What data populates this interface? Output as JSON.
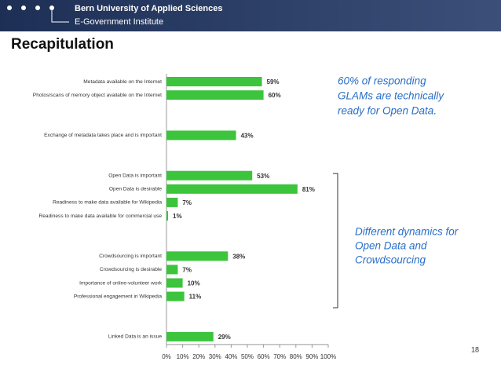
{
  "header": {
    "org": "Bern University of Applied Sciences",
    "institute": "E-Government Institute"
  },
  "page_number": "18",
  "chart_data": {
    "type": "barh",
    "title": "Recapitulation",
    "categories": [
      "Metadata available on the Internet",
      "Photos/scans of memory object available on the Internet",
      null,
      null,
      "Exchange of metadata takes place and is important",
      null,
      null,
      "Open Data is important",
      "Open Data is desirable",
      "Readiness to make data available for Wikipedia",
      "Readiness to make data available for commercial use",
      null,
      null,
      "Crowdsourcing is important",
      "Crowdsourcing is desirable",
      "Importance of online-volunteer work",
      "Professional engagement in Wikipedia",
      null,
      null,
      "Linked Data is an issue"
    ],
    "values": [
      59,
      60,
      null,
      null,
      43,
      null,
      null,
      53,
      81,
      7,
      1,
      null,
      null,
      38,
      7,
      10,
      11,
      null,
      null,
      29
    ],
    "value_labels": [
      "59%",
      "60%",
      null,
      null,
      "43%",
      null,
      null,
      "53%",
      "81%",
      "7%",
      "1%",
      null,
      null,
      "38%",
      "7%",
      "10%",
      "11%",
      null,
      null,
      "29%"
    ],
    "color": "#3cc43c",
    "xlim": [
      0,
      100
    ],
    "xticks": [
      {
        "value": 0,
        "label": "0%"
      },
      {
        "value": 10,
        "label": "10%"
      },
      {
        "value": 20,
        "label": "20%"
      },
      {
        "value": 30,
        "label": "30%"
      },
      {
        "value": 40,
        "label": "40%"
      },
      {
        "value": 50,
        "label": "50%"
      },
      {
        "value": 60,
        "label": "60%"
      },
      {
        "value": 70,
        "label": "70%"
      },
      {
        "value": 80,
        "label": "80%"
      },
      {
        "value": 90,
        "label": "90%"
      },
      {
        "value": 100,
        "label": "100%"
      }
    ],
    "annotations": [
      "60% of responding",
      "GLAMs are technically",
      "ready for Open Data.",
      "Different dynamics for",
      "Open Data and",
      "Crowdsourcing"
    ]
  }
}
